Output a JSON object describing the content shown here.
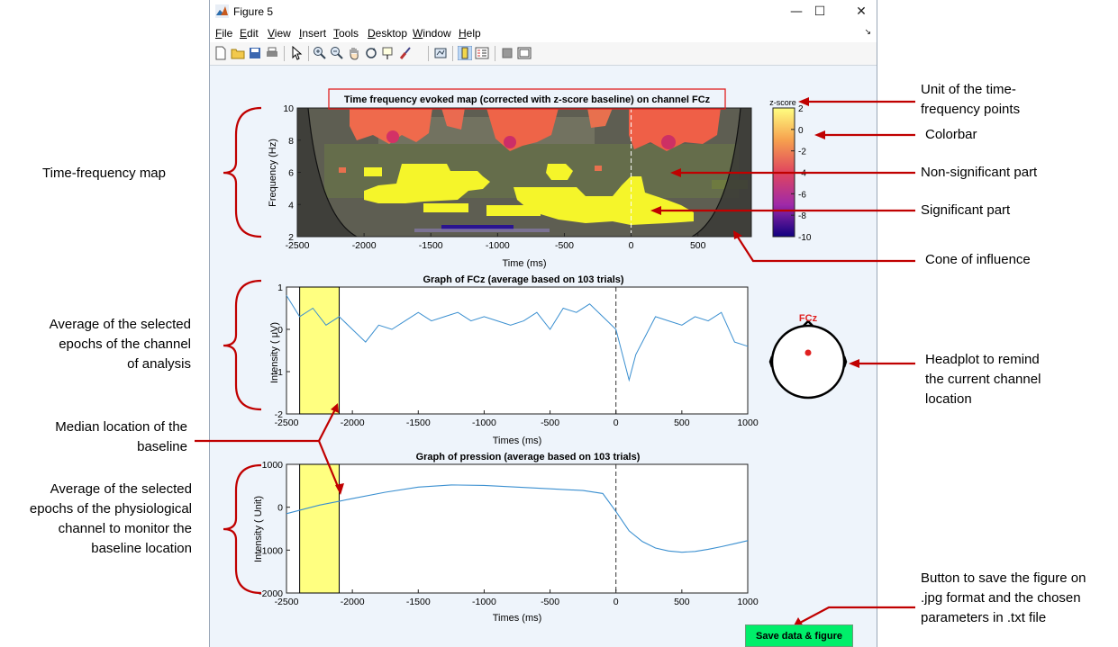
{
  "window": {
    "title": "Figure 5",
    "menu": [
      "File",
      "Edit",
      "View",
      "Insert",
      "Tools",
      "Desktop",
      "Window",
      "Help"
    ],
    "menu_underline": [
      "F",
      "E",
      "V",
      "I",
      "T",
      "D",
      "W",
      "H"
    ],
    "controls": {
      "minimize": "—",
      "maximize": "☐",
      "close": "✕"
    }
  },
  "toolbar_icons": [
    "new-figure-icon",
    "open-file-icon",
    "save-icon",
    "print-icon",
    "pointer-icon",
    "zoom-in-icon",
    "zoom-out-icon",
    "pan-icon",
    "rotate-icon",
    "data-cursor-icon",
    "brush-icon",
    "link-icon",
    "colorbar-toggle-icon",
    "legend-toggle-icon",
    "hide-tools-icon",
    "dock-icon"
  ],
  "plots": {
    "tf_map": {
      "title": "Time frequency evoked map (corrected with z-score baseline) on channel FCz",
      "xlabel": "Time (ms)",
      "ylabel": "Frequency (Hz)",
      "xlim": [
        -2500,
        900
      ],
      "ylim": [
        2,
        10
      ],
      "xticks": [
        "-2500",
        "-2000",
        "-1500",
        "-1000",
        "-500",
        "0",
        "500"
      ],
      "yticks": [
        "2",
        "4",
        "6",
        "8",
        "10"
      ],
      "colorbar": {
        "label": "z-score",
        "ticks": [
          "2",
          "0",
          "-2",
          "-4",
          "-6",
          "-8",
          "-10"
        ],
        "lim": [
          -10,
          2
        ]
      }
    },
    "eeg": {
      "title": "Graph of FCz (average based on 103 trials)",
      "xlabel": "Times (ms)",
      "ylabel": "Intensity ( μV)",
      "xlim": [
        -2500,
        1000
      ],
      "ylim": [
        -2,
        1
      ],
      "xticks": [
        "-2500",
        "-2000",
        "-1500",
        "-1000",
        "-500",
        "0",
        "500",
        "1000"
      ],
      "yticks": [
        "1",
        "0",
        "-1",
        "-2"
      ],
      "baseline": [
        -2400,
        -2100
      ]
    },
    "pression": {
      "title": "Graph of pression (average based on 103 trials)",
      "xlabel": "Times (ms)",
      "ylabel": "Intensity ( Unit)",
      "xlim": [
        -2500,
        1000
      ],
      "ylim": [
        -2000,
        1000
      ],
      "xticks": [
        "-2500",
        "-2000",
        "-1500",
        "-1000",
        "-500",
        "0",
        "500",
        "1000"
      ],
      "yticks": [
        "1000",
        "0",
        "-1000",
        "-2000"
      ],
      "baseline": [
        -2400,
        -2100
      ]
    },
    "headplot": {
      "channel": "FCz"
    }
  },
  "chart_data": [
    {
      "type": "line",
      "title": "Graph of FCz (average based on 103 trials)",
      "xlabel": "Times (ms)",
      "ylabel": "Intensity ( μV)",
      "xlim": [
        -2500,
        1000
      ],
      "ylim": [
        -2,
        1
      ],
      "x": [
        -2500,
        -2400,
        -2300,
        -2200,
        -2100,
        -2000,
        -1900,
        -1800,
        -1700,
        -1600,
        -1500,
        -1400,
        -1300,
        -1200,
        -1100,
        -1000,
        -900,
        -800,
        -700,
        -600,
        -500,
        -400,
        -300,
        -200,
        -100,
        0,
        50,
        100,
        150,
        200,
        300,
        400,
        500,
        600,
        700,
        800,
        900,
        1000
      ],
      "series": [
        {
          "values": [
            0.8,
            0.3,
            0.5,
            0.1,
            0.3,
            0.0,
            -0.3,
            0.1,
            0.0,
            0.2,
            0.4,
            0.2,
            0.3,
            0.4,
            0.2,
            0.3,
            0.2,
            0.1,
            0.2,
            0.4,
            0.0,
            0.5,
            0.4,
            0.6,
            0.3,
            0.0,
            -0.6,
            -1.2,
            -0.6,
            -0.3,
            0.3,
            0.2,
            0.1,
            0.3,
            0.2,
            0.4,
            -0.3,
            -0.4
          ]
        }
      ]
    },
    {
      "type": "line",
      "title": "Graph of pression (average based on 103 trials)",
      "xlabel": "Times (ms)",
      "ylabel": "Intensity ( Unit)",
      "xlim": [
        -2500,
        1000
      ],
      "ylim": [
        -2000,
        1000
      ],
      "x": [
        -2500,
        -2250,
        -2000,
        -1750,
        -1500,
        -1250,
        -1000,
        -750,
        -500,
        -250,
        -100,
        0,
        100,
        200,
        300,
        400,
        500,
        600,
        700,
        800,
        900,
        1000
      ],
      "series": [
        {
          "values": [
            -150,
            50,
            200,
            350,
            470,
            520,
            510,
            470,
            430,
            390,
            320,
            -100,
            -550,
            -800,
            -950,
            -1020,
            -1050,
            -1030,
            -980,
            -920,
            -850,
            -780
          ]
        }
      ]
    }
  ],
  "annotations": {
    "tf_map": "Time-frequency map",
    "unit": "Unit of the time-\nfrequency points",
    "colorbar": "Colorbar",
    "nonsig": "Non-significant part",
    "sig": "Significant part",
    "cone": "Cone of influence",
    "avg_epochs": "Average of the selected\nepochs of the channel\nof analysis",
    "headplot": "Headplot to remind\nthe current channel\nlocation",
    "median_baseline": "Median location of the\nbaseline",
    "avg_phys": "Average of the selected\nepochs of the physiological\nchannel to monitor the\nbaseline location",
    "save_button": "Button to save the figure on\n.jpg format and the chosen\nparameters in .txt file"
  },
  "save_button_label": "Save data & figure",
  "colors": {
    "accent_red": "#c00000",
    "line_blue": "#0072bd",
    "baseline_yellow": "#ffff80",
    "significant_yellow": "#f5f52a",
    "button_green": "#00ee6a"
  }
}
